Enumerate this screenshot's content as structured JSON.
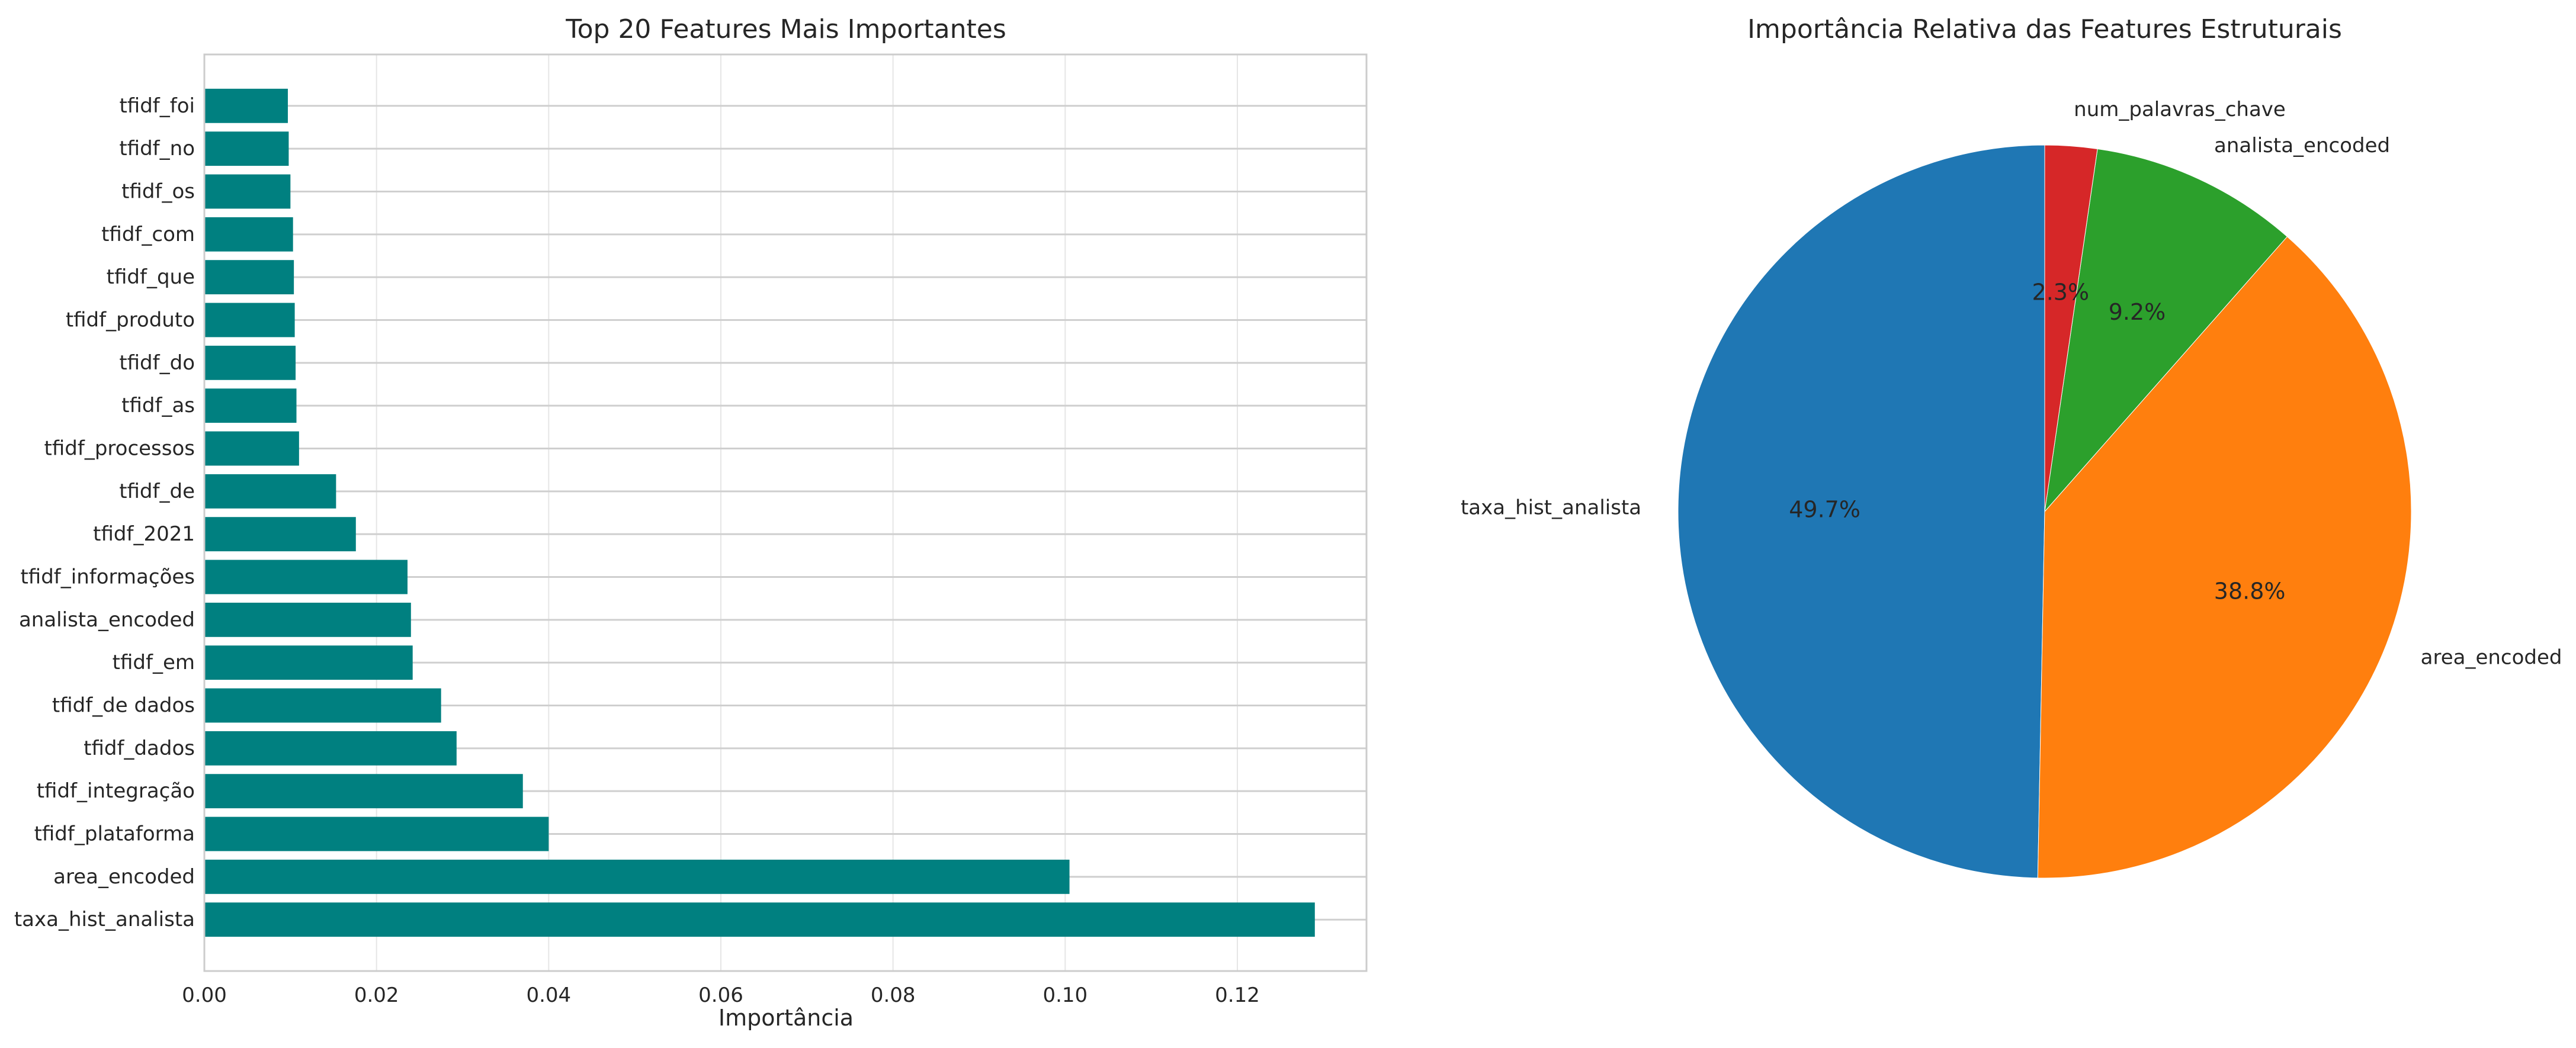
{
  "chart_data": [
    {
      "type": "bar",
      "orientation": "horizontal",
      "title": "Top 20 Features Mais Importantes",
      "xlabel": "Importância",
      "ylabel": "",
      "xlim": [
        0,
        0.135
      ],
      "xticks": [
        0.0,
        0.02,
        0.04,
        0.06,
        0.08,
        0.1,
        0.12
      ],
      "xtick_labels": [
        "0.00",
        "0.02",
        "0.04",
        "0.06",
        "0.08",
        "0.10",
        "0.12"
      ],
      "grid": true,
      "bar_color": "#008080",
      "categories": [
        "taxa_hist_analista",
        "area_encoded",
        "tfidf_plataforma",
        "tfidf_integração",
        "tfidf_dados",
        "tfidf_de dados",
        "tfidf_em",
        "analista_encoded",
        "tfidf_informações",
        "tfidf_2021",
        "tfidf_de",
        "tfidf_processos",
        "tfidf_as",
        "tfidf_do",
        "tfidf_produto",
        "tfidf_que",
        "tfidf_com",
        "tfidf_os",
        "tfidf_no",
        "tfidf_foi"
      ],
      "values": [
        0.129,
        0.1005,
        0.04,
        0.037,
        0.0293,
        0.0275,
        0.0242,
        0.024,
        0.0236,
        0.0176,
        0.0153,
        0.011,
        0.0107,
        0.0106,
        0.0105,
        0.0104,
        0.0103,
        0.01,
        0.0098,
        0.0097
      ]
    },
    {
      "type": "pie",
      "title": "Importância Relativa das Features Estruturais",
      "start_angle_deg": 90,
      "direction": "counterclockwise",
      "slices": [
        {
          "label": "taxa_hist_analista",
          "value": 49.7,
          "pct_label": "49.7%",
          "color": "#1f77b4"
        },
        {
          "label": "area_encoded",
          "value": 38.8,
          "pct_label": "38.8%",
          "color": "#ff7f0e"
        },
        {
          "label": "analista_encoded",
          "value": 9.2,
          "pct_label": "9.2%",
          "color": "#2ca02c"
        },
        {
          "label": "num_palavras_chave",
          "value": 2.3,
          "pct_label": "2.3%",
          "color": "#d62728"
        }
      ]
    }
  ]
}
